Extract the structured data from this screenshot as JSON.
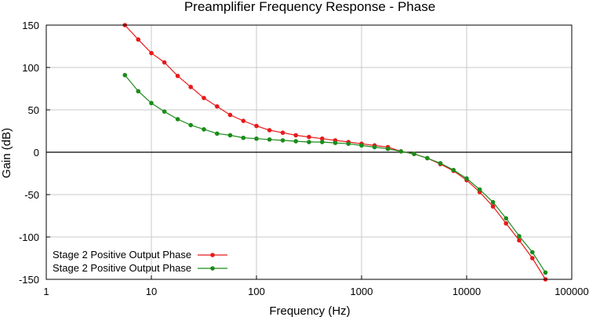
{
  "chart_data": {
    "type": "line",
    "title": "Preamplifier Frequency Response - Phase",
    "xlabel": "Frequency (Hz)",
    "ylabel": "Gain (dB)",
    "xscale": "log",
    "xlim": [
      1,
      100000
    ],
    "ylim": [
      -150,
      150
    ],
    "xticks": [
      1,
      10,
      100,
      1000,
      10000,
      100000
    ],
    "xtick_labels": [
      "1",
      "10",
      "100",
      "1000",
      "10000",
      "100000"
    ],
    "yticks": [
      150,
      100,
      50,
      0,
      -50,
      -100,
      -150
    ],
    "ytick_labels": [
      "150",
      "100",
      "50",
      "0",
      "-50",
      "-100",
      "-150"
    ],
    "grid": true,
    "legend_position": "bottom-left",
    "series": [
      {
        "name": "Stage 2 Positive Output Phase",
        "color": "#e8191a",
        "x": [
          5.6,
          7.5,
          10,
          13.3,
          17.8,
          23.7,
          31.6,
          42.2,
          56.2,
          75,
          100,
          133,
          178,
          237,
          316,
          422,
          562,
          750,
          1000,
          1330,
          1780,
          2370,
          3160,
          4220,
          5620,
          7500,
          10000,
          13300,
          17800,
          23700,
          31600,
          42200,
          56200
        ],
        "y": [
          150,
          133,
          117,
          106,
          90,
          77,
          64,
          54,
          44,
          37,
          31,
          26,
          23,
          20,
          18,
          16,
          14,
          12,
          10,
          8,
          6,
          1,
          -2,
          -7,
          -14,
          -22,
          -33,
          -47,
          -64,
          -84,
          -104,
          -125,
          -150
        ]
      },
      {
        "name": "Stage 2 Positive Output Phase",
        "color": "#1a8c1a",
        "x": [
          5.6,
          7.5,
          10,
          13.3,
          17.8,
          23.7,
          31.6,
          42.2,
          56.2,
          75,
          100,
          133,
          178,
          237,
          316,
          422,
          562,
          750,
          1000,
          1330,
          1780,
          2370,
          3160,
          4220,
          5620,
          7500,
          10000,
          13300,
          17800,
          23700,
          31600,
          42200,
          56200
        ],
        "y": [
          91,
          72,
          58,
          48,
          39,
          32,
          27,
          22,
          20,
          17,
          16,
          15,
          14,
          13,
          12,
          12,
          11,
          10,
          8,
          6,
          4,
          1,
          -2,
          -7,
          -13,
          -21,
          -31,
          -44,
          -59,
          -78,
          -99,
          -118,
          -142
        ]
      }
    ]
  }
}
